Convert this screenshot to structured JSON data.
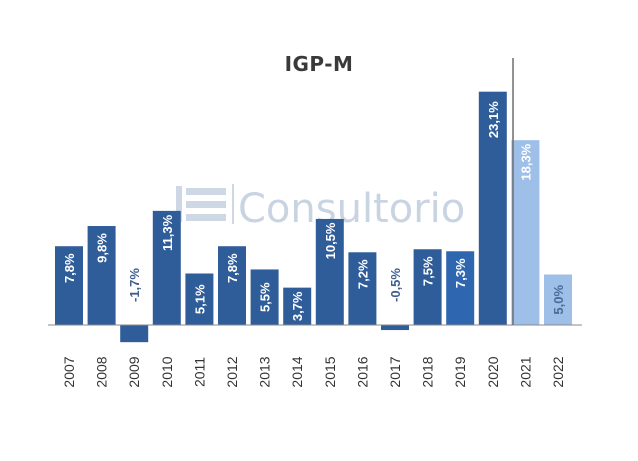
{
  "chart_data": {
    "type": "bar",
    "title": "IGP-M",
    "xlabel": "",
    "ylabel": "",
    "categories": [
      "2007",
      "2008",
      "2009",
      "2010",
      "2011",
      "2012",
      "2013",
      "2014",
      "2015",
      "2016",
      "2017",
      "2018",
      "2019",
      "2020",
      "2021",
      "2022"
    ],
    "values": [
      7.8,
      9.8,
      -1.7,
      11.3,
      5.1,
      7.8,
      5.5,
      3.7,
      10.5,
      7.2,
      -0.5,
      7.5,
      7.3,
      23.1,
      18.3,
      5.0
    ],
    "labels": [
      "7,8%",
      "9,8%",
      "-1,7%",
      "11,3%",
      "5,1%",
      "7,8%",
      "5,5%",
      "3,7%",
      "10,5%",
      "7,2%",
      "-0,5%",
      "7,5%",
      "7,3%",
      "23,1%",
      "18,3%",
      "5,0%"
    ],
    "bar_colors": [
      "#2f5d9a",
      "#2f5d9a",
      "#2f5d9a",
      "#2f5d9a",
      "#2f5d9a",
      "#2f5d9a",
      "#2f5d9a",
      "#2f5d9a",
      "#2f5d9a",
      "#2f5d9a",
      "#2f5d9a",
      "#2f5d9a",
      "#2e67b0",
      "#2f5d9a",
      "#9dbfe8",
      "#9dbfe8"
    ],
    "label_colors": [
      "#ffffff",
      "#ffffff",
      "#3f5f8f",
      "#ffffff",
      "#ffffff",
      "#ffffff",
      "#ffffff",
      "#ffffff",
      "#ffffff",
      "#ffffff",
      "#3f5f8f",
      "#ffffff",
      "#ffffff",
      "#ffffff",
      "#ffffff",
      "#4a6a98"
    ],
    "ylim": [
      -2,
      27
    ],
    "grid": false,
    "legend": "none"
  },
  "watermark": {
    "text": "Consultorio",
    "color": "#c9d4e2"
  },
  "colors": {
    "axis": "#8a8a8a",
    "tick_label": "#333333",
    "title": "#3a3a3a"
  }
}
